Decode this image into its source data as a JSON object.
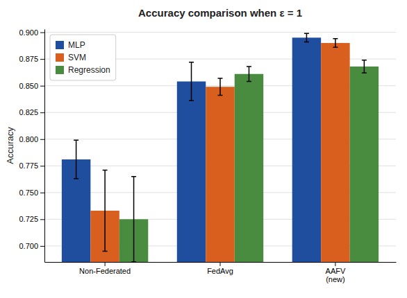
{
  "chart_data": {
    "type": "bar",
    "title": "Accuracy comparison when ε = 1",
    "ylabel": "Accuracy",
    "categories": [
      "Non-Federated",
      "FedAvg",
      "AAFV\n(new)"
    ],
    "series": [
      {
        "name": "MLP",
        "color": "#1f4e9e",
        "values": [
          0.781,
          0.854,
          0.895
        ],
        "errors": [
          0.018,
          0.018,
          0.004
        ]
      },
      {
        "name": "SVM",
        "color": "#d95f1e",
        "values": [
          0.733,
          0.849,
          0.89
        ],
        "errors": [
          0.038,
          0.008,
          0.004
        ]
      },
      {
        "name": "Regression",
        "color": "#4a8c3f",
        "values": [
          0.725,
          0.861,
          0.868
        ],
        "errors": [
          0.04,
          0.007,
          0.006
        ]
      }
    ],
    "ylim": [
      0.685,
      0.903
    ],
    "yticks": [
      {
        "value": 0.7,
        "label": "0.700"
      },
      0.725,
      {
        "value": 0.75,
        "label": "0.750"
      },
      0.775,
      {
        "value": 0.8,
        "label": "0.800"
      },
      0.825,
      {
        "value": 0.85,
        "label": "0.850"
      },
      0.875,
      {
        "value": 0.9,
        "label": "0.900"
      }
    ],
    "grid": true,
    "legend": "upper left"
  }
}
